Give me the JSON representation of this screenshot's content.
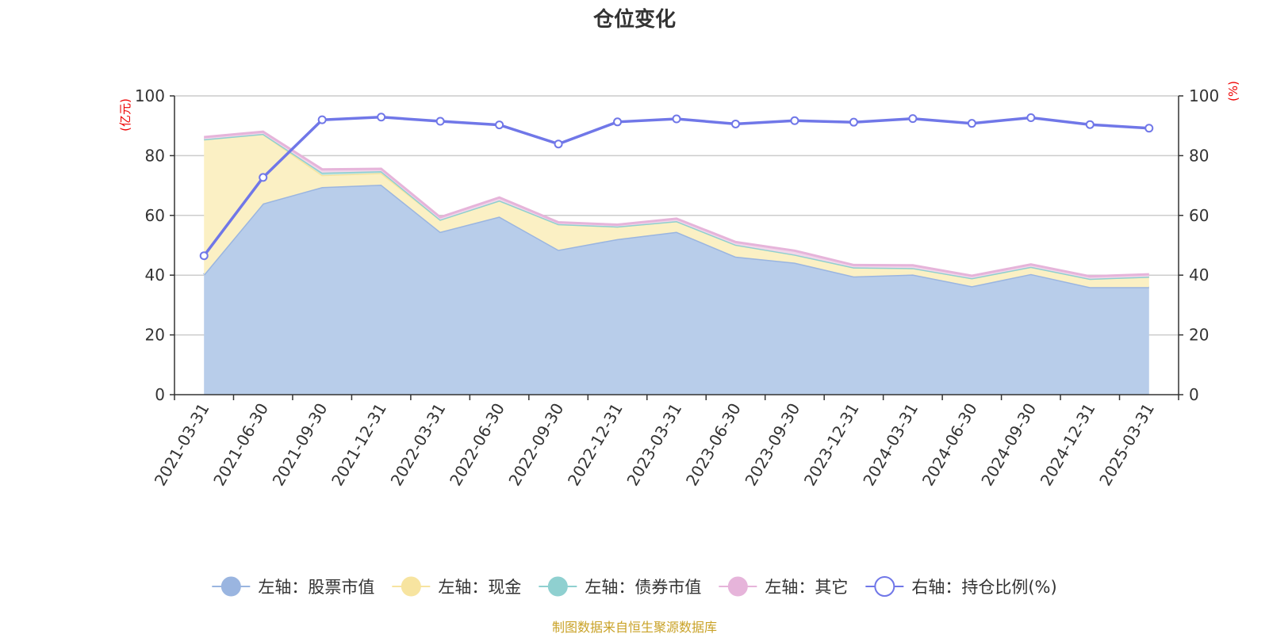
{
  "chart_data": {
    "type": "area",
    "title": "仓位变化",
    "left_axis": {
      "unit": "(亿元)",
      "range": [
        0,
        100
      ],
      "ticks": [
        "0",
        "20",
        "40",
        "60",
        "80",
        "100"
      ]
    },
    "right_axis": {
      "unit": "(%)",
      "range": [
        0,
        100
      ],
      "ticks": [
        "0",
        "20",
        "40",
        "60",
        "80",
        "100"
      ]
    },
    "categories": [
      "2021-03-31",
      "2021-06-30",
      "2021-09-30",
      "2021-12-31",
      "2022-03-31",
      "2022-06-30",
      "2022-09-30",
      "2022-12-31",
      "2023-03-31",
      "2023-06-30",
      "2023-09-30",
      "2023-12-31",
      "2024-03-31",
      "2024-06-30",
      "2024-09-30",
      "2024-12-31",
      "2025-03-31"
    ],
    "grid": true,
    "legend_position": "bottom",
    "series": [
      {
        "name": "左轴：股票市值",
        "axis": "left",
        "kind": "stacked-area",
        "color": "#9ab5e0",
        "fill": "#b8cdea",
        "values": [
          40.2,
          64.0,
          69.5,
          70.3,
          54.5,
          59.6,
          48.5,
          52.1,
          54.5,
          46.2,
          44.2,
          39.6,
          40.2,
          36.3,
          40.4,
          36.0,
          36.0
        ]
      },
      {
        "name": "左轴：现金",
        "axis": "left",
        "kind": "stacked-area",
        "color": "#f7e4a0",
        "fill": "#fbf0c4",
        "values": [
          45.3,
          23.3,
          4.0,
          3.9,
          4.1,
          5.4,
          8.6,
          4.2,
          3.6,
          4.0,
          2.7,
          3.0,
          2.2,
          2.7,
          2.4,
          2.8,
          3.5
        ]
      },
      {
        "name": "左轴：债券市值",
        "axis": "left",
        "kind": "stacked-area",
        "color": "#8fd0d0",
        "fill": "#bfe3e3",
        "values": [
          0,
          0,
          0.8,
          0.6,
          0,
          0,
          0,
          0,
          0,
          0,
          0,
          0,
          0,
          0,
          0,
          0,
          0
        ]
      },
      {
        "name": "左轴：其它",
        "axis": "left",
        "kind": "stacked-area",
        "color": "#e6b4da",
        "fill": "#f1d6ea",
        "values": [
          0.7,
          0.7,
          1.1,
          0.8,
          0.8,
          1.0,
          0.6,
          0.6,
          0.8,
          0.9,
          1.3,
          0.8,
          0.9,
          0.8,
          0.8,
          0.8,
          0.8
        ]
      },
      {
        "name": "右轴：持仓比例(%)",
        "axis": "right",
        "kind": "line",
        "color": "#7077e8",
        "values": [
          46.5,
          72.7,
          92.0,
          92.9,
          91.5,
          90.3,
          83.9,
          91.3,
          92.3,
          90.6,
          91.7,
          91.2,
          92.4,
          90.8,
          92.7,
          90.4,
          89.2
        ]
      }
    ],
    "source_note": "制图数据来自恒生聚源数据库"
  }
}
